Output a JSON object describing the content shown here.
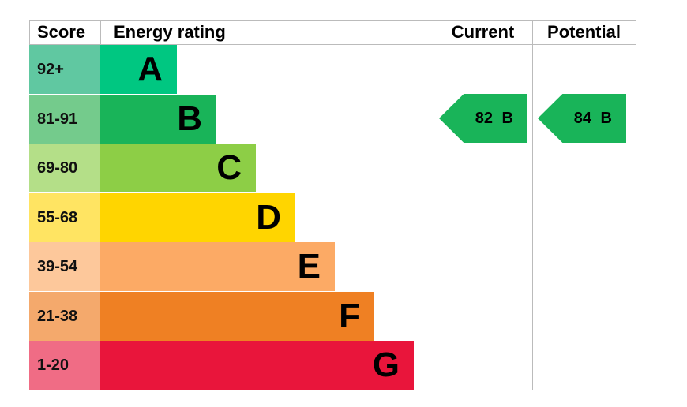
{
  "chart_data": {
    "type": "table",
    "headers": {
      "score": "Score",
      "rating": "Energy rating",
      "current": "Current",
      "potential": "Potential"
    },
    "bands": [
      {
        "score": "92+",
        "letter": "A",
        "color": "#00c781",
        "score_color": "#60c8a1"
      },
      {
        "score": "81-91",
        "letter": "B",
        "color": "#19b459",
        "score_color": "#74cb8c"
      },
      {
        "score": "69-80",
        "letter": "C",
        "color": "#8dce46",
        "score_color": "#b4df88"
      },
      {
        "score": "55-68",
        "letter": "D",
        "color": "#ffd500",
        "score_color": "#ffe462"
      },
      {
        "score": "39-54",
        "letter": "E",
        "color": "#fcaa65",
        "score_color": "#fdc89b"
      },
      {
        "score": "21-38",
        "letter": "F",
        "color": "#ef8023",
        "score_color": "#f4a96c"
      },
      {
        "score": "1-20",
        "letter": "G",
        "color": "#e9153b",
        "score_color": "#f06c85"
      }
    ],
    "current": {
      "value": 82,
      "letter": "B",
      "label": "82 B",
      "color": "#19b459"
    },
    "potential": {
      "value": 84,
      "letter": "B",
      "label": "84 B",
      "color": "#19b459"
    }
  }
}
